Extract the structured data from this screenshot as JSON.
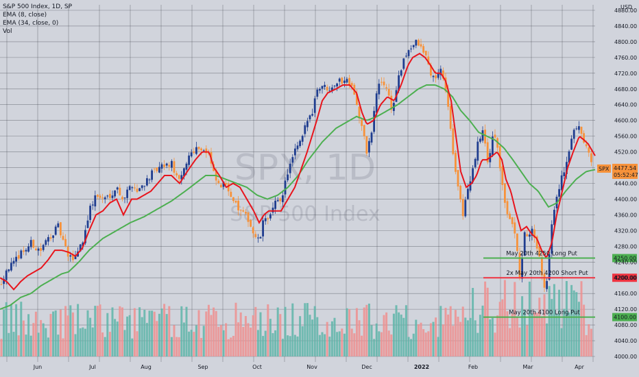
{
  "legend": {
    "title": "S&P 500 Index, 1D, SP",
    "ema_fast": "EMA (8, close)",
    "ema_slow": "EMA (34, close, 0)",
    "volume": "Vol"
  },
  "watermark": {
    "symbol": "SPX, 1D",
    "name": "S&P 500 Index"
  },
  "currency": "USD",
  "colors": {
    "background": "#d1d4dc",
    "grid": "#3a3d47",
    "up_candle": "#1f3d8f",
    "down_candle": "#f7923a",
    "ema_fast": "#e8141c",
    "ema_slow": "#4caf50",
    "vol_up": "#5fb5a9",
    "vol_down": "#ef8f8f",
    "level_green": "#4caf50",
    "level_red": "#ef3340",
    "price_badge": "#f7923a"
  },
  "chart_data": {
    "type": "candlestick",
    "x_axis_labels": [
      "Jun",
      "Jul",
      "Aug",
      "Sep",
      "Oct",
      "Nov",
      "Dec",
      "2022",
      "Feb",
      "Mar",
      "Apr"
    ],
    "y_axis_labels": [
      4000,
      4040,
      4080,
      4120,
      4160,
      4200,
      4240,
      4280,
      4320,
      4360,
      4400,
      4440,
      4480,
      4520,
      4560,
      4600,
      4640,
      4680,
      4720,
      4760,
      4800,
      4840,
      4880
    ],
    "ylim": [
      3990,
      4880
    ],
    "last_price": {
      "label": "SPX",
      "value": "4477.54",
      "countdown": "05:52:47"
    },
    "price_levels": [
      {
        "value": 4250,
        "label": "4250.00",
        "annotation": "May 20th 4250 Long Put",
        "color": "green"
      },
      {
        "value": 4200,
        "label": "4200.00",
        "annotation": "2x May 20th 4200 Short Put",
        "color": "red"
      },
      {
        "value": 4100,
        "label": "4100.00",
        "annotation": "May 20th 4100 Long Put",
        "color": "green"
      }
    ],
    "close_anchors": [
      [
        0,
        4180
      ],
      [
        10,
        4225
      ],
      [
        20,
        4235
      ],
      [
        30,
        4265
      ],
      [
        40,
        4275
      ],
      [
        46,
        4290
      ],
      [
        52,
        4275
      ],
      [
        60,
        4270
      ],
      [
        70,
        4300
      ],
      [
        85,
        4330
      ],
      [
        100,
        4250
      ],
      [
        108,
        4250
      ],
      [
        115,
        4275
      ],
      [
        122,
        4300
      ],
      [
        130,
        4370
      ],
      [
        140,
        4410
      ],
      [
        150,
        4400
      ],
      [
        160,
        4410
      ],
      [
        170,
        4430
      ],
      [
        180,
        4400
      ],
      [
        192,
        4440
      ],
      [
        200,
        4420
      ],
      [
        210,
        4440
      ],
      [
        222,
        4465
      ],
      [
        235,
        4480
      ],
      [
        250,
        4490
      ],
      [
        262,
        4440
      ],
      [
        275,
        4510
      ],
      [
        285,
        4530
      ],
      [
        295,
        4530
      ],
      [
        305,
        4510
      ],
      [
        312,
        4460
      ],
      [
        320,
        4430
      ],
      [
        330,
        4440
      ],
      [
        345,
        4380
      ],
      [
        355,
        4360
      ],
      [
        362,
        4350
      ],
      [
        370,
        4310
      ],
      [
        378,
        4290
      ],
      [
        385,
        4350
      ],
      [
        395,
        4360
      ],
      [
        402,
        4390
      ],
      [
        410,
        4400
      ],
      [
        420,
        4470
      ],
      [
        430,
        4520
      ],
      [
        440,
        4550
      ],
      [
        448,
        4600
      ],
      [
        455,
        4620
      ],
      [
        462,
        4680
      ],
      [
        470,
        4690
      ],
      [
        478,
        4680
      ],
      [
        485,
        4690
      ],
      [
        492,
        4700
      ],
      [
        500,
        4700
      ],
      [
        507,
        4705
      ],
      [
        515,
        4690
      ],
      [
        522,
        4620
      ],
      [
        528,
        4580
      ],
      [
        535,
        4520
      ],
      [
        542,
        4570
      ],
      [
        550,
        4680
      ],
      [
        557,
        4700
      ],
      [
        565,
        4680
      ],
      [
        572,
        4620
      ],
      [
        580,
        4700
      ],
      [
        587,
        4740
      ],
      [
        595,
        4780
      ],
      [
        602,
        4790
      ],
      [
        608,
        4800
      ],
      [
        615,
        4780
      ],
      [
        622,
        4760
      ],
      [
        628,
        4720
      ],
      [
        635,
        4700
      ],
      [
        642,
        4740
      ],
      [
        648,
        4700
      ],
      [
        655,
        4620
      ],
      [
        662,
        4500
      ],
      [
        668,
        4430
      ],
      [
        675,
        4360
      ],
      [
        682,
        4420
      ],
      [
        690,
        4480
      ],
      [
        697,
        4540
      ],
      [
        705,
        4580
      ],
      [
        712,
        4480
      ],
      [
        718,
        4560
      ],
      [
        725,
        4540
      ],
      [
        732,
        4440
      ],
      [
        740,
        4360
      ],
      [
        747,
        4330
      ],
      [
        752,
        4300
      ],
      [
        758,
        4200
      ],
      [
        765,
        4310
      ],
      [
        772,
        4310
      ],
      [
        778,
        4320
      ],
      [
        785,
        4270
      ],
      [
        792,
        4180
      ],
      [
        798,
        4190
      ],
      [
        806,
        4360
      ],
      [
        812,
        4400
      ],
      [
        818,
        4450
      ],
      [
        825,
        4480
      ],
      [
        832,
        4540
      ],
      [
        838,
        4580
      ],
      [
        845,
        4590
      ],
      [
        852,
        4550
      ],
      [
        858,
        4530
      ],
      [
        862,
        4490
      ],
      [
        868,
        4478
      ]
    ],
    "ema_fast_anchors": [
      [
        0,
        4200
      ],
      [
        10,
        4190
      ],
      [
        20,
        4170
      ],
      [
        30,
        4190
      ],
      [
        40,
        4205
      ],
      [
        50,
        4215
      ],
      [
        60,
        4225
      ],
      [
        70,
        4245
      ],
      [
        80,
        4270
      ],
      [
        90,
        4270
      ],
      [
        100,
        4265
      ],
      [
        110,
        4255
      ],
      [
        120,
        4275
      ],
      [
        130,
        4320
      ],
      [
        140,
        4360
      ],
      [
        150,
        4370
      ],
      [
        160,
        4390
      ],
      [
        170,
        4400
      ],
      [
        180,
        4360
      ],
      [
        192,
        4400
      ],
      [
        200,
        4400
      ],
      [
        210,
        4410
      ],
      [
        220,
        4420
      ],
      [
        230,
        4440
      ],
      [
        240,
        4460
      ],
      [
        250,
        4460
      ],
      [
        262,
        4440
      ],
      [
        275,
        4475
      ],
      [
        285,
        4500
      ],
      [
        295,
        4520
      ],
      [
        305,
        4520
      ],
      [
        312,
        4480
      ],
      [
        320,
        4460
      ],
      [
        330,
        4430
      ],
      [
        340,
        4440
      ],
      [
        350,
        4430
      ],
      [
        360,
        4400
      ],
      [
        370,
        4370
      ],
      [
        378,
        4340
      ],
      [
        385,
        4360
      ],
      [
        392,
        4370
      ],
      [
        400,
        4370
      ],
      [
        410,
        4370
      ],
      [
        420,
        4400
      ],
      [
        430,
        4430
      ],
      [
        440,
        4480
      ],
      [
        448,
        4520
      ],
      [
        455,
        4560
      ],
      [
        462,
        4600
      ],
      [
        470,
        4650
      ],
      [
        478,
        4670
      ],
      [
        490,
        4680
      ],
      [
        500,
        4690
      ],
      [
        510,
        4690
      ],
      [
        520,
        4670
      ],
      [
        528,
        4620
      ],
      [
        535,
        4590
      ],
      [
        545,
        4600
      ],
      [
        555,
        4640
      ],
      [
        565,
        4660
      ],
      [
        575,
        4650
      ],
      [
        585,
        4690
      ],
      [
        595,
        4740
      ],
      [
        602,
        4760
      ],
      [
        612,
        4770
      ],
      [
        620,
        4760
      ],
      [
        628,
        4740
      ],
      [
        635,
        4720
      ],
      [
        643,
        4720
      ],
      [
        650,
        4700
      ],
      [
        658,
        4650
      ],
      [
        665,
        4560
      ],
      [
        672,
        4470
      ],
      [
        680,
        4430
      ],
      [
        688,
        4440
      ],
      [
        695,
        4460
      ],
      [
        703,
        4500
      ],
      [
        710,
        4500
      ],
      [
        718,
        4510
      ],
      [
        725,
        4520
      ],
      [
        732,
        4500
      ],
      [
        738,
        4450
      ],
      [
        745,
        4420
      ],
      [
        752,
        4370
      ],
      [
        760,
        4320
      ],
      [
        768,
        4330
      ],
      [
        776,
        4310
      ],
      [
        783,
        4300
      ],
      [
        790,
        4270
      ],
      [
        797,
        4250
      ],
      [
        805,
        4290
      ],
      [
        812,
        4360
      ],
      [
        820,
        4420
      ],
      [
        828,
        4480
      ],
      [
        836,
        4520
      ],
      [
        845,
        4560
      ],
      [
        852,
        4550
      ],
      [
        858,
        4540
      ],
      [
        863,
        4525
      ],
      [
        868,
        4510
      ]
    ],
    "ema_slow_anchors": [
      [
        0,
        4120
      ],
      [
        15,
        4130
      ],
      [
        30,
        4150
      ],
      [
        45,
        4160
      ],
      [
        60,
        4180
      ],
      [
        75,
        4195
      ],
      [
        90,
        4210
      ],
      [
        100,
        4215
      ],
      [
        115,
        4240
      ],
      [
        130,
        4270
      ],
      [
        150,
        4300
      ],
      [
        170,
        4320
      ],
      [
        190,
        4340
      ],
      [
        210,
        4355
      ],
      [
        230,
        4375
      ],
      [
        250,
        4395
      ],
      [
        270,
        4420
      ],
      [
        285,
        4440
      ],
      [
        300,
        4460
      ],
      [
        315,
        4460
      ],
      [
        330,
        4450
      ],
      [
        345,
        4440
      ],
      [
        360,
        4430
      ],
      [
        375,
        4410
      ],
      [
        390,
        4400
      ],
      [
        405,
        4410
      ],
      [
        420,
        4430
      ],
      [
        435,
        4460
      ],
      [
        450,
        4500
      ],
      [
        470,
        4545
      ],
      [
        490,
        4580
      ],
      [
        505,
        4595
      ],
      [
        520,
        4610
      ],
      [
        535,
        4600
      ],
      [
        550,
        4610
      ],
      [
        565,
        4625
      ],
      [
        580,
        4640
      ],
      [
        595,
        4660
      ],
      [
        610,
        4680
      ],
      [
        622,
        4690
      ],
      [
        635,
        4690
      ],
      [
        648,
        4680
      ],
      [
        660,
        4660
      ],
      [
        672,
        4625
      ],
      [
        685,
        4600
      ],
      [
        698,
        4570
      ],
      [
        710,
        4560
      ],
      [
        722,
        4550
      ],
      [
        735,
        4530
      ],
      [
        748,
        4500
      ],
      [
        760,
        4470
      ],
      [
        772,
        4440
      ],
      [
        785,
        4420
      ],
      [
        800,
        4380
      ],
      [
        812,
        4390
      ],
      [
        825,
        4420
      ],
      [
        840,
        4450
      ],
      [
        855,
        4470
      ],
      [
        868,
        4475
      ]
    ]
  }
}
